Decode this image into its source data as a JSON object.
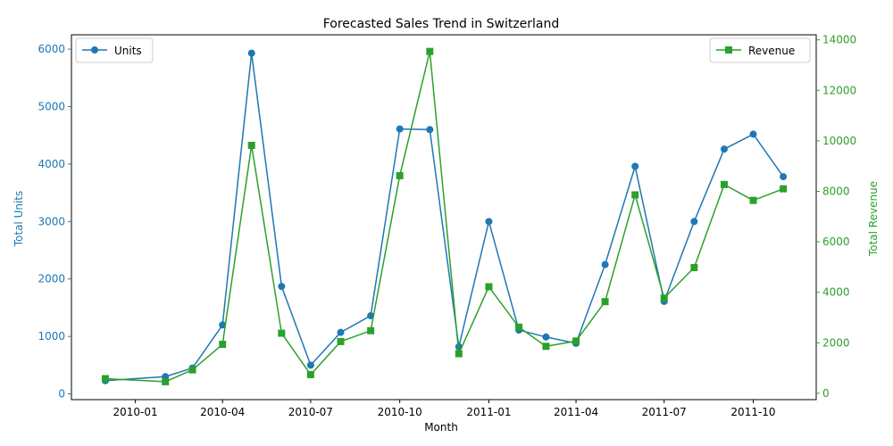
{
  "chart_data": {
    "type": "line",
    "title": "Forecasted Sales Trend in Switzerland",
    "xlabel": "Month",
    "ylabel_left": "Total Units",
    "ylabel_right": "Total Revenue",
    "x_ticks": [
      "2010-01",
      "2010-04",
      "2010-07",
      "2010-10",
      "2011-01",
      "2011-04",
      "2011-07",
      "2011-10"
    ],
    "x": [
      "2009-12",
      "2010-02",
      "2010-03",
      "2010-04",
      "2010-05",
      "2010-06",
      "2010-07",
      "2010-08",
      "2010-09",
      "2010-10",
      "2010-11",
      "2010-12",
      "2011-01",
      "2011-02",
      "2011-03",
      "2011-04",
      "2011-05",
      "2011-06",
      "2011-07",
      "2011-08",
      "2011-09",
      "2011-10",
      "2011-11"
    ],
    "xlim": [
      "2009-10-27",
      "2011-12-05"
    ],
    "y_left_lim": [
      -100,
      6250
    ],
    "y_left_ticks": [
      0,
      1000,
      2000,
      3000,
      4000,
      5000,
      6000
    ],
    "y_right_lim": [
      -250,
      14200
    ],
    "y_right_ticks": [
      0,
      2000,
      4000,
      6000,
      8000,
      10000,
      12000,
      14000
    ],
    "series": [
      {
        "name": "Units",
        "axis": "left",
        "color": "#1f77b4",
        "marker": "circle",
        "values": [
          230,
          300,
          450,
          1200,
          5930,
          1870,
          500,
          1070,
          1360,
          4610,
          4600,
          820,
          3000,
          1110,
          990,
          880,
          2250,
          3960,
          1610,
          3000,
          4260,
          4520,
          3780
        ]
      },
      {
        "name": "Revenue",
        "axis": "right",
        "color": "#2ca02c",
        "marker": "square",
        "values": [
          580,
          460,
          930,
          1940,
          9820,
          2380,
          740,
          2050,
          2480,
          8620,
          13540,
          1570,
          4220,
          2620,
          1860,
          2070,
          3630,
          7860,
          3770,
          4980,
          8270,
          7640,
          8100
        ]
      }
    ],
    "legend_left": "top-left",
    "legend_right": "top-right",
    "grid": false
  }
}
